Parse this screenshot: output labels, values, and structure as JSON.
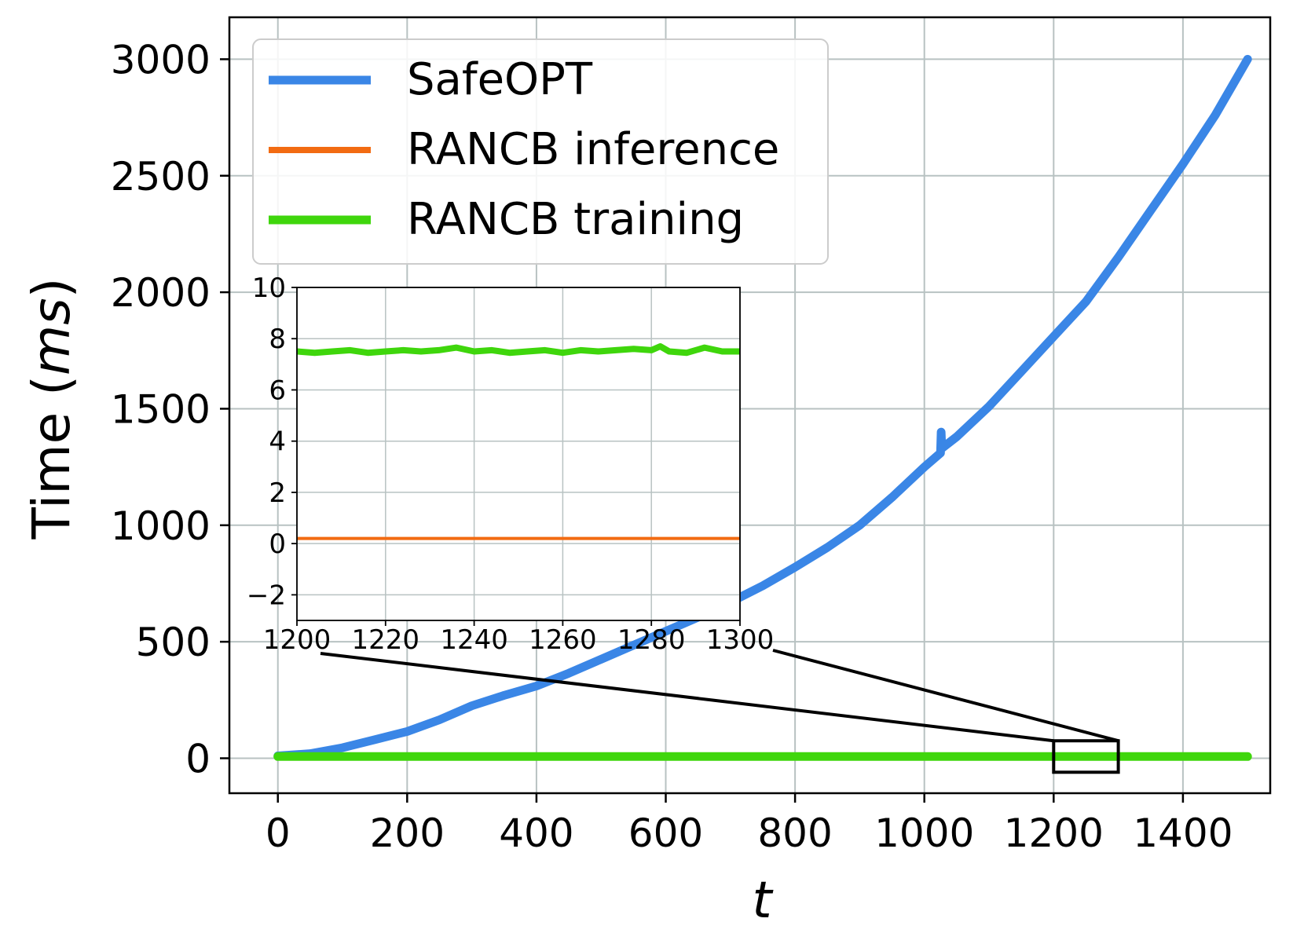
{
  "colors": {
    "safeopt": "#3a86e6",
    "rancb_inference": "#f26b12",
    "rancb_training": "#3fd60c",
    "grid": "#b8c2c2",
    "axis": "#000000"
  },
  "chart_data": [
    {
      "type": "line",
      "panel": "main",
      "title": "",
      "xlabel": "t",
      "ylabel_prefix": "Time (",
      "ylabel_unit": "ms",
      "ylabel_suffix": ")",
      "xlim": [
        -75,
        1535
      ],
      "ylim": [
        -150,
        3180
      ],
      "xticks": [
        0,
        200,
        400,
        600,
        800,
        1000,
        1200,
        1400
      ],
      "yticks": [
        0,
        500,
        1000,
        1500,
        2000,
        2500,
        3000
      ],
      "grid": true,
      "legend": "top-left",
      "zoom_box": {
        "x": [
          1200,
          1300
        ],
        "y": [
          -60,
          75
        ]
      },
      "series": [
        {
          "name": "SafeOPT",
          "x": [
            0,
            50,
            100,
            150,
            200,
            250,
            300,
            350,
            400,
            450,
            500,
            550,
            600,
            650,
            700,
            750,
            800,
            850,
            900,
            950,
            1000,
            1025,
            1026,
            1027,
            1050,
            1100,
            1150,
            1200,
            1250,
            1300,
            1350,
            1400,
            1450,
            1500
          ],
          "y": [
            10,
            20,
            45,
            80,
            115,
            165,
            225,
            270,
            310,
            365,
            425,
            485,
            545,
            605,
            670,
            740,
            820,
            905,
            1000,
            1120,
            1250,
            1310,
            1400,
            1330,
            1380,
            1510,
            1660,
            1810,
            1960,
            2150,
            2350,
            2550,
            2760,
            3000
          ]
        },
        {
          "name": "RANCB inference",
          "x": [
            0,
            1500
          ],
          "y": [
            0.2,
            0.2
          ]
        },
        {
          "name": "RANCB training",
          "x": [
            0,
            1500
          ],
          "y": [
            7.5,
            7.5
          ]
        }
      ]
    },
    {
      "type": "line",
      "panel": "inset",
      "title": "",
      "xlabel": "",
      "ylabel": "",
      "xlim": [
        1200,
        1300
      ],
      "ylim": [
        -3,
        10
      ],
      "xticks": [
        1200,
        1220,
        1240,
        1260,
        1280,
        1300
      ],
      "yticks": [
        -2,
        0,
        2,
        4,
        6,
        8,
        10
      ],
      "ytick_labels": [
        "−2",
        "0",
        "2",
        "4",
        "6",
        "8",
        "10"
      ],
      "grid": true,
      "series": [
        {
          "name": "RANCB training",
          "x": [
            1200,
            1204,
            1208,
            1212,
            1216,
            1220,
            1224,
            1228,
            1232,
            1236,
            1240,
            1244,
            1248,
            1252,
            1256,
            1260,
            1264,
            1268,
            1272,
            1276,
            1280,
            1282,
            1284,
            1288,
            1292,
            1296,
            1300
          ],
          "y": [
            7.5,
            7.45,
            7.5,
            7.55,
            7.45,
            7.5,
            7.55,
            7.5,
            7.55,
            7.65,
            7.5,
            7.55,
            7.45,
            7.5,
            7.55,
            7.45,
            7.55,
            7.5,
            7.55,
            7.6,
            7.55,
            7.7,
            7.5,
            7.45,
            7.65,
            7.5,
            7.5
          ]
        },
        {
          "name": "RANCB inference",
          "x": [
            1200,
            1300
          ],
          "y": [
            0.2,
            0.2
          ]
        }
      ]
    }
  ]
}
